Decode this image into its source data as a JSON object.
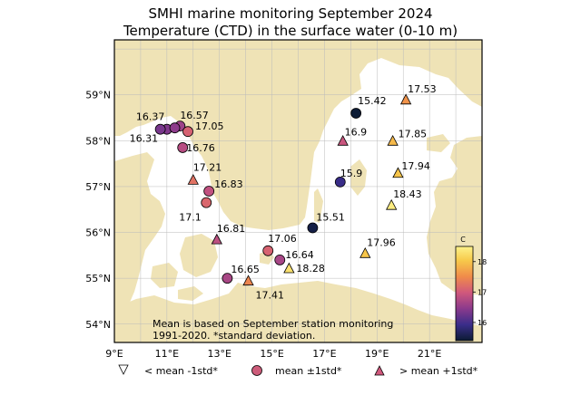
{
  "title_line1": "SMHI marine monitoring September 2024",
  "title_line2": "Temperature (CTD) in the surface water (0-10 m)",
  "map": {
    "lon_range": [
      9,
      23
    ],
    "lat_range": [
      53.6,
      60.2
    ],
    "lon_ticks": [
      "9°E",
      "11°E",
      "13°E",
      "15°E",
      "17°E",
      "19°E",
      "21°E"
    ],
    "lat_ticks": [
      "54°N",
      "55°N",
      "56°N",
      "57°N",
      "58°N",
      "59°N"
    ],
    "ocean_color": "#ffffff",
    "land_color": "#efe3b6",
    "grid": true
  },
  "stations": [
    {
      "label": "16.37",
      "lon": 11.0,
      "lat": 58.25,
      "value": 16.37,
      "class": "mean"
    },
    {
      "label": "16.57",
      "lon": 11.5,
      "lat": 58.32,
      "value": 16.57,
      "class": "mean"
    },
    {
      "label": "",
      "lon": 11.3,
      "lat": 58.28,
      "value": 16.45,
      "class": "mean"
    },
    {
      "label": "16.31",
      "lon": 10.75,
      "lat": 58.25,
      "value": 16.31,
      "class": "mean"
    },
    {
      "label": "17.05",
      "lon": 11.8,
      "lat": 58.2,
      "value": 17.05,
      "class": "mean"
    },
    {
      "label": "16.76",
      "lon": 11.6,
      "lat": 57.85,
      "value": 16.76,
      "class": "mean"
    },
    {
      "label": "17.21",
      "lon": 12.0,
      "lat": 57.15,
      "value": 17.21,
      "class": "above"
    },
    {
      "label": "16.83",
      "lon": 12.6,
      "lat": 56.9,
      "value": 16.83,
      "class": "mean"
    },
    {
      "label": "17.1",
      "lon": 12.5,
      "lat": 56.65,
      "value": 17.1,
      "class": "mean"
    },
    {
      "label": "16.81",
      "lon": 12.9,
      "lat": 55.85,
      "value": 16.81,
      "class": "above"
    },
    {
      "label": "16.65",
      "lon": 13.3,
      "lat": 55.0,
      "value": 16.65,
      "class": "mean"
    },
    {
      "label": "17.41",
      "lon": 14.1,
      "lat": 54.95,
      "value": 17.41,
      "class": "above"
    },
    {
      "label": "17.06",
      "lon": 14.85,
      "lat": 55.6,
      "value": 17.06,
      "class": "mean"
    },
    {
      "label": "16.64",
      "lon": 15.3,
      "lat": 55.4,
      "value": 16.64,
      "class": "mean"
    },
    {
      "label": "18.28",
      "lon": 15.65,
      "lat": 55.22,
      "value": 18.28,
      "class": "above"
    },
    {
      "label": "15.51",
      "lon": 16.55,
      "lat": 56.1,
      "value": 15.51,
      "class": "mean"
    },
    {
      "label": "15.9",
      "lon": 17.6,
      "lat": 57.1,
      "value": 15.9,
      "class": "mean"
    },
    {
      "label": "16.9",
      "lon": 17.7,
      "lat": 58.0,
      "value": 16.9,
      "class": "above"
    },
    {
      "label": "15.42",
      "lon": 18.2,
      "lat": 58.6,
      "value": 15.42,
      "class": "mean"
    },
    {
      "label": "17.53",
      "lon": 20.1,
      "lat": 58.9,
      "value": 17.53,
      "class": "above"
    },
    {
      "label": "17.85",
      "lon": 19.6,
      "lat": 58.0,
      "value": 17.85,
      "class": "above"
    },
    {
      "label": "17.94",
      "lon": 19.8,
      "lat": 57.3,
      "value": 17.94,
      "class": "above"
    },
    {
      "label": "18.43",
      "lon": 19.55,
      "lat": 56.6,
      "value": 18.43,
      "class": "above"
    },
    {
      "label": "17.96",
      "lon": 18.55,
      "lat": 55.55,
      "value": 17.96,
      "class": "above"
    }
  ],
  "note_line1": "Mean is based on September station monitoring",
  "note_line2": "1991-2020. *standard deviation.",
  "colorbar": {
    "label": "C",
    "min": 15.4,
    "max": 18.5,
    "ticks": [
      16,
      17,
      18
    ],
    "stops": [
      "#0b1b33",
      "#3a2d8a",
      "#8b3a8c",
      "#d0587c",
      "#f08b4a",
      "#f7c94a",
      "#fdf28a"
    ]
  },
  "legend": [
    {
      "marker": "triangle-down",
      "label": "< mean -1std*"
    },
    {
      "marker": "circle",
      "label": "mean ±1std*"
    },
    {
      "marker": "triangle-up",
      "label": "> mean +1std*"
    }
  ]
}
